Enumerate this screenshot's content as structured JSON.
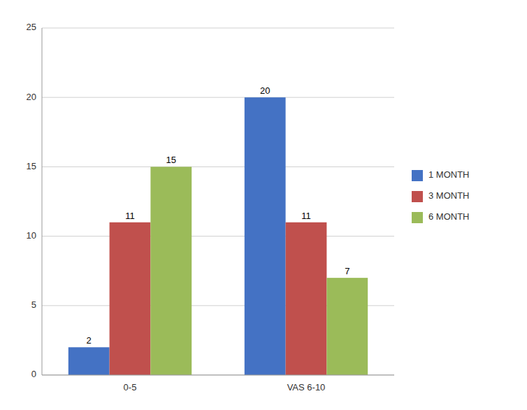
{
  "chart_data": {
    "type": "bar",
    "categories": [
      "0-5",
      "VAS 6-10"
    ],
    "series": [
      {
        "name": "1 MONTH",
        "values": [
          2,
          20
        ],
        "color": "#4472C4"
      },
      {
        "name": "3 MONTH",
        "values": [
          11,
          11
        ],
        "color": "#C0504D"
      },
      {
        "name": "6 MONTH",
        "values": [
          15,
          7
        ],
        "color": "#9BBB59"
      }
    ],
    "ylim": [
      0,
      25
    ],
    "yticks": [
      0,
      5,
      10,
      15,
      20,
      25
    ],
    "grid": true,
    "legend": "right",
    "data_labels": true
  }
}
